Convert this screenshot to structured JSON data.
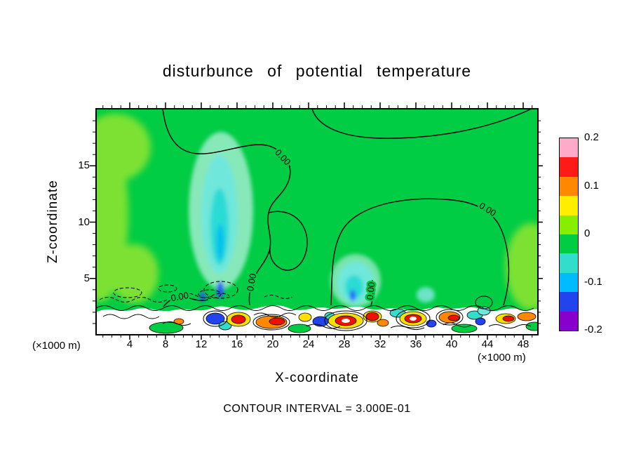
{
  "title": "disturbunce of potential temperature",
  "axes": {
    "x_label": "X-coordinate",
    "y_label": "Z-coordinate",
    "x_unit_left": "(×1000 m)",
    "x_unit_right": "(×1000 m)",
    "x_ticks": [
      "4",
      "8",
      "12",
      "16",
      "20",
      "24",
      "28",
      "32",
      "36",
      "40",
      "44",
      "48"
    ],
    "y_ticks": [
      "5",
      "10",
      "15"
    ]
  },
  "colorbar": {
    "labels": [
      "0.2",
      "0.1",
      "0",
      "-0.1",
      "-0.2"
    ],
    "colors_top_to_bottom": [
      "#FFAAC8",
      "#FF1A1A",
      "#FF8800",
      "#FFEE00",
      "#88EE00",
      "#00CC44",
      "#33DDCC",
      "#00BBFF",
      "#2244EE",
      "#8800CC"
    ]
  },
  "annotations": {
    "contour_interval_note": "CONTOUR INTERVAL = 3.000E-01",
    "zero_contour_label": "0.00"
  },
  "chart_data": {
    "type": "heatmap",
    "title": "disturbunce of potential temperature",
    "xlabel": "X-coordinate (×1000 m)",
    "ylabel": "Z-coordinate (×1000 m)",
    "x_ticks": [
      4,
      8,
      12,
      16,
      20,
      24,
      28,
      32,
      36,
      40,
      44,
      48
    ],
    "y_ticks": [
      5,
      10,
      15
    ],
    "x_range": [
      0,
      49.5
    ],
    "y_range": [
      0,
      20
    ],
    "value_range": [
      -0.2,
      0.2
    ],
    "colorbar_tick_values": [
      0.2,
      0.1,
      0,
      -0.1,
      -0.2
    ],
    "contour_interval": 0.3,
    "zero_contour_label": "0.00",
    "grid": false,
    "legend_position": "right-colorbar",
    "field_summary": [
      {
        "region": "most of domain above z≈2",
        "value": 0.0,
        "note": "near-zero disturbance (green), outlined by the 0.00 contour"
      },
      {
        "region": "x≈10-14, z≈2-13",
        "value": -0.08,
        "note": "cool plume (cyan), strongest ≈ -0.15 with small pockets < -0.15 near z≈2-3"
      },
      {
        "region": "x≈27-30, z≈2-5",
        "value": -0.08,
        "note": "secondary cool patch (cyan) with small blue core"
      },
      {
        "region": "x≈0-4 and x≈46-49, z≈3-16",
        "value": 0.04,
        "note": "weak warm patches (yellow-green)"
      },
      {
        "region": "z≲2 boundary layer, all x",
        "value": "beyond ±0.2",
        "note": "turbulent layer: strong warm cells (yellow/orange/red with white saturated cores) alternating with cool cells (cyan/blue); dashed negative contours on left portion"
      }
    ]
  }
}
